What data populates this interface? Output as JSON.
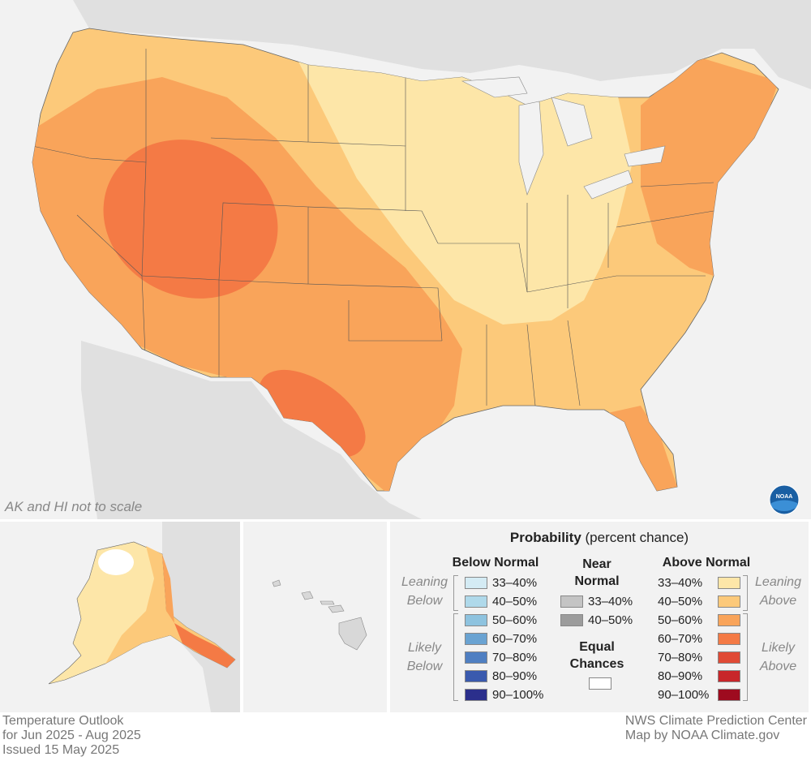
{
  "map": {
    "scale_note": "AK and HI not to scale",
    "logo_label": "NOAA",
    "colors": {
      "background": "#f2f2f2",
      "land_outside": "#e0e0e0",
      "leaning_above_33_40": "#fde6a8",
      "leaning_above_40_50": "#fcc97a",
      "likely_above_50_60": "#f9a45a",
      "likely_above_60_70": "#f47a45"
    },
    "regions_above_60_70": [
      "Great Basin / Central Rockies",
      "West Texas"
    ],
    "regions_above_50_60": [
      "Western US",
      "Southern Plains",
      "Texas",
      "Northeast",
      "Florida"
    ],
    "regions_above_40_50": [
      "Pacific coast",
      "Northern Plains",
      "Southeast",
      "Mid-Atlantic"
    ],
    "regions_above_33_40": [
      "Upper Midwest",
      "Ohio Valley",
      "Great Lakes"
    ]
  },
  "legend": {
    "title_bold": "Probability",
    "title_rest": " (percent chance)",
    "below": {
      "heading": "Below Normal",
      "leaning_label": [
        "Leaning",
        "Below"
      ],
      "likely_label": [
        "Likely",
        "Below"
      ],
      "items": [
        {
          "label": "33–40%",
          "color": "#d4ebf4"
        },
        {
          "label": "40–50%",
          "color": "#afd9ea"
        },
        {
          "label": "50–60%",
          "color": "#8ec3df"
        },
        {
          "label": "60–70%",
          "color": "#6aa3d2"
        },
        {
          "label": "70–80%",
          "color": "#4f7fc2"
        },
        {
          "label": "80–90%",
          "color": "#3a5aae"
        },
        {
          "label": "90–100%",
          "color": "#2b2f8c"
        }
      ]
    },
    "near": {
      "heading": [
        "Near",
        "Normal"
      ],
      "items": [
        {
          "label": "33–40%",
          "color": "#c4c4c4"
        },
        {
          "label": "40–50%",
          "color": "#9c9c9c"
        }
      ],
      "equal_heading": [
        "Equal",
        "Chances"
      ],
      "equal_color": "#ffffff"
    },
    "above": {
      "heading": "Above Normal",
      "leaning_label": [
        "Leaning",
        "Above"
      ],
      "likely_label": [
        "Likely",
        "Above"
      ],
      "items": [
        {
          "label": "33–40%",
          "color": "#fde6a8"
        },
        {
          "label": "40–50%",
          "color": "#fcc97a"
        },
        {
          "label": "50–60%",
          "color": "#f9a45a"
        },
        {
          "label": "60–70%",
          "color": "#f47a45"
        },
        {
          "label": "70–80%",
          "color": "#e04a35"
        },
        {
          "label": "80–90%",
          "color": "#c8262a"
        },
        {
          "label": "90–100%",
          "color": "#9e0b1f"
        }
      ]
    }
  },
  "footer": {
    "left": [
      "Temperature Outlook",
      "for Jun 2025 - Aug 2025",
      "Issued 15 May 2025"
    ],
    "right": [
      "NWS Climate Prediction Center",
      "Map by NOAA Climate.gov"
    ]
  }
}
